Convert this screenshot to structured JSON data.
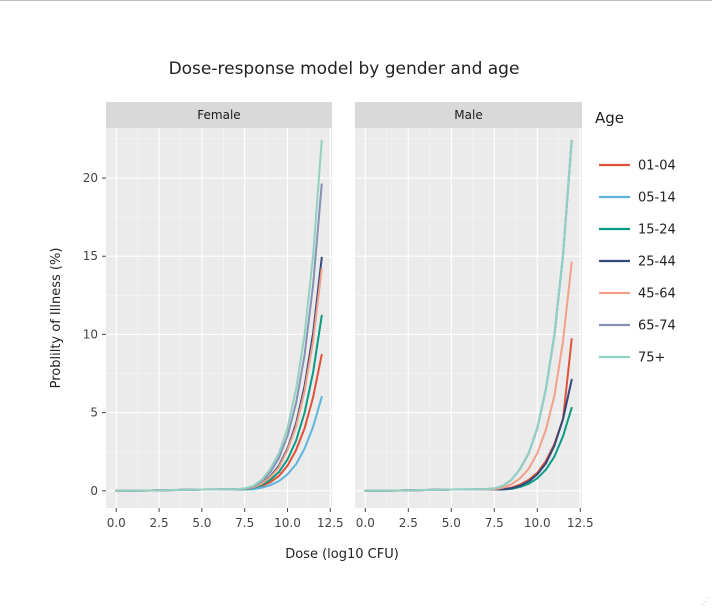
{
  "chart_data": {
    "type": "line",
    "title": "Dose-response model by gender and age",
    "xlabel": "Dose (log10 CFU)",
    "ylabel": "Problilty of Illness (%)",
    "xlim": [
      -0.6,
      12.6
    ],
    "ylim": [
      -1.1,
      23.2
    ],
    "x_ticks": [
      0,
      2.5,
      5,
      7.5,
      10,
      12.5
    ],
    "x_tick_labels": [
      "0.0",
      "2.5",
      "5.0",
      "7.5",
      "10.0",
      "12.5"
    ],
    "y_ticks": [
      0,
      5,
      10,
      15,
      20
    ],
    "y_tick_labels": [
      "0",
      "5",
      "10",
      "15",
      "20"
    ],
    "grid": true,
    "legend": {
      "title": "Age",
      "position": "right"
    },
    "x": [
      0,
      1,
      2,
      3,
      4,
      5,
      6,
      7,
      7.5,
      8,
      8.5,
      9,
      9.5,
      10,
      10.5,
      11,
      11.5,
      12
    ],
    "facets": [
      {
        "label": "Female",
        "series": [
          {
            "name": "01-04",
            "color": "#e0513a",
            "values": [
              0,
              0.01,
              0.02,
              0.04,
              0.06,
              0.08,
              0.08,
              0.09,
              0.09,
              0.15,
              0.3,
              0.55,
              0.95,
              1.6,
              2.6,
              4.0,
              6.0,
              8.7
            ]
          },
          {
            "name": "05-14",
            "color": "#5cb4e0",
            "values": [
              0,
              0.01,
              0.02,
              0.04,
              0.06,
              0.08,
              0.08,
              0.08,
              0.08,
              0.1,
              0.2,
              0.36,
              0.62,
              1.05,
              1.7,
              2.7,
              4.1,
              6.0
            ]
          },
          {
            "name": "15-24",
            "color": "#0a9a82",
            "values": [
              0,
              0.01,
              0.02,
              0.04,
              0.06,
              0.08,
              0.08,
              0.09,
              0.1,
              0.18,
              0.38,
              0.7,
              1.2,
              2.0,
              3.2,
              5.0,
              7.6,
              11.2
            ]
          },
          {
            "name": "25-44",
            "color": "#34487c",
            "values": [
              0,
              0.01,
              0.02,
              0.04,
              0.06,
              0.08,
              0.09,
              0.1,
              0.12,
              0.22,
              0.48,
              0.92,
              1.6,
              2.7,
              4.3,
              6.7,
              10.1,
              14.9
            ]
          },
          {
            "name": "45-64",
            "color": "#f2a087",
            "values": [
              0,
              0.01,
              0.02,
              0.04,
              0.06,
              0.08,
              0.09,
              0.1,
              0.12,
              0.22,
              0.46,
              0.87,
              1.5,
              2.6,
              4.1,
              6.4,
              9.6,
              14.2
            ]
          },
          {
            "name": "65-74",
            "color": "#8491b4",
            "values": [
              0,
              0.01,
              0.02,
              0.04,
              0.06,
              0.08,
              0.09,
              0.11,
              0.14,
              0.28,
              0.6,
              1.2,
              2.1,
              3.5,
              5.6,
              8.7,
              13.2,
              19.6
            ]
          },
          {
            "name": "75+",
            "color": "#91d1c2",
            "values": [
              0,
              0.01,
              0.02,
              0.04,
              0.06,
              0.08,
              0.09,
              0.11,
              0.15,
              0.32,
              0.7,
              1.4,
              2.4,
              4.0,
              6.5,
              10.0,
              15.1,
              22.4
            ]
          }
        ]
      },
      {
        "label": "Male",
        "series": [
          {
            "name": "01-04",
            "color": "#e0513a",
            "values": [
              0,
              0.01,
              0.02,
              0.04,
              0.06,
              0.08,
              0.08,
              0.08,
              0.08,
              0.1,
              0.2,
              0.4,
              0.7,
              1.15,
              1.9,
              3.0,
              4.6,
              9.7
            ]
          },
          {
            "name": "05-14",
            "color": "#5cb4e0",
            "values": [
              0,
              0.01,
              0.02,
              0.04,
              0.06,
              0.08,
              0.09,
              0.11,
              0.15,
              0.32,
              0.7,
              1.4,
              2.4,
              4.0,
              6.5,
              10.0,
              15.1,
              22.4
            ]
          },
          {
            "name": "15-24",
            "color": "#0a9a82",
            "values": [
              0,
              0.01,
              0.02,
              0.04,
              0.06,
              0.08,
              0.08,
              0.08,
              0.08,
              0.08,
              0.12,
              0.25,
              0.45,
              0.8,
              1.35,
              2.2,
              3.5,
              5.3
            ]
          },
          {
            "name": "25-44",
            "color": "#34487c",
            "values": [
              0,
              0.01,
              0.02,
              0.04,
              0.06,
              0.08,
              0.08,
              0.08,
              0.08,
              0.09,
              0.16,
              0.32,
              0.6,
              1.05,
              1.75,
              2.9,
              4.6,
              7.1
            ]
          },
          {
            "name": "45-64",
            "color": "#f2a087",
            "values": [
              0,
              0.01,
              0.02,
              0.04,
              0.06,
              0.08,
              0.08,
              0.09,
              0.1,
              0.2,
              0.42,
              0.8,
              1.4,
              2.4,
              3.9,
              6.1,
              9.6,
              14.6
            ]
          },
          {
            "name": "65-74",
            "color": "#8491b4",
            "values": [
              0,
              0.01,
              0.02,
              0.04,
              0.06,
              0.08,
              0.09,
              0.11,
              0.15,
              0.32,
              0.7,
              1.4,
              2.4,
              4.0,
              6.5,
              10.0,
              15.1,
              22.4
            ]
          },
          {
            "name": "75+",
            "color": "#91d1c2",
            "values": [
              0,
              0.01,
              0.02,
              0.04,
              0.06,
              0.08,
              0.09,
              0.11,
              0.15,
              0.32,
              0.7,
              1.4,
              2.4,
              4.0,
              6.5,
              10.0,
              15.1,
              22.4
            ]
          }
        ]
      }
    ]
  }
}
